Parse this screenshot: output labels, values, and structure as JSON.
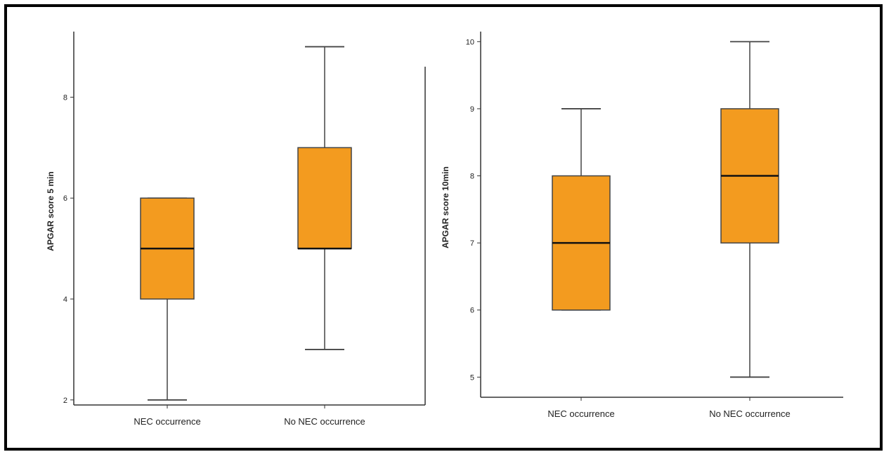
{
  "chart_data": [
    {
      "type": "box",
      "ylabel": "APGAR score 5 min",
      "categories": [
        "NEC occurrence",
        "No NEC occurrence"
      ],
      "yticks": [
        2,
        4,
        6,
        8
      ],
      "ylim": [
        1.9,
        9.3
      ],
      "boxes": [
        {
          "category": "NEC occurrence",
          "min": 2,
          "q1": 4,
          "median": 5,
          "q3": 6,
          "max": 6
        },
        {
          "category": "No NEC occurrence",
          "min": 3,
          "q1": 5,
          "median": 5,
          "q3": 7,
          "max": 9
        }
      ],
      "box_color": "#F39B1F"
    },
    {
      "type": "box",
      "ylabel": "APGAR score 10min",
      "categories": [
        "NEC occurrence",
        "No NEC occurrence"
      ],
      "yticks": [
        5,
        6,
        7,
        8,
        9,
        10
      ],
      "ylim": [
        4.7,
        10.15
      ],
      "boxes": [
        {
          "category": "NEC occurrence",
          "min": 6,
          "q1": 6,
          "median": 7,
          "q3": 8,
          "max": 9
        },
        {
          "category": "No NEC occurrence",
          "min": 5,
          "q1": 7,
          "median": 8,
          "q3": 9,
          "max": 10
        }
      ],
      "box_color": "#F39B1F"
    }
  ]
}
